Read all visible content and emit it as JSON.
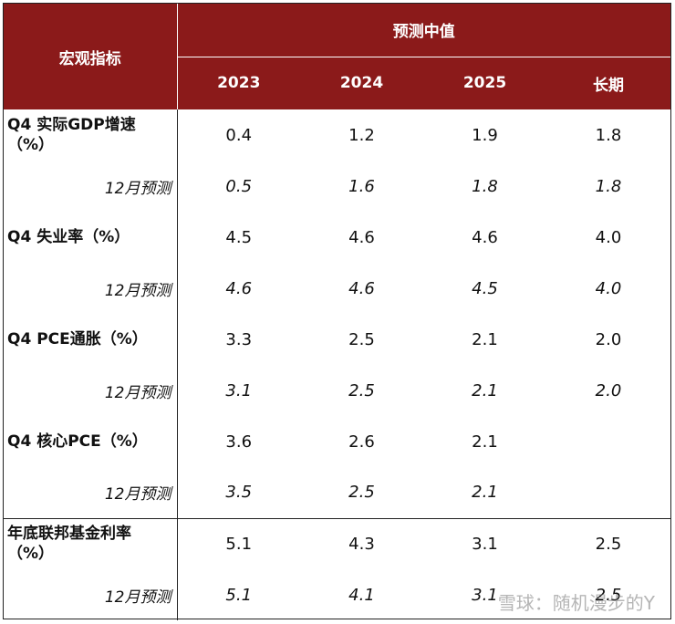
{
  "header": {
    "row_label": "宏观指标",
    "group_label": "预测中值",
    "years": [
      "2023",
      "2024",
      "2025",
      "长期"
    ]
  },
  "rows": [
    {
      "label_line1": "Q4 实际GDP增速",
      "label_line2": "（%）",
      "values": [
        "0.4",
        "1.2",
        "1.9",
        "1.8"
      ],
      "sub_label": "12月预测",
      "sub_values": [
        "0.5",
        "1.6",
        "1.8",
        "1.8"
      ]
    },
    {
      "label_line1": "Q4 失业率（%）",
      "label_line2": "",
      "values": [
        "4.5",
        "4.6",
        "4.6",
        "4.0"
      ],
      "sub_label": "12月预测",
      "sub_values": [
        "4.6",
        "4.6",
        "4.5",
        "4.0"
      ]
    },
    {
      "label_line1": "Q4 PCE通胀（%）",
      "label_line2": "",
      "values": [
        "3.3",
        "2.5",
        "2.1",
        "2.0"
      ],
      "sub_label": "12月预测",
      "sub_values": [
        "3.1",
        "2.5",
        "2.1",
        "2.0"
      ]
    },
    {
      "label_line1": "Q4 核心PCE（%）",
      "label_line2": "",
      "values": [
        "3.6",
        "2.6",
        "2.1",
        ""
      ],
      "sub_label": "12月预测",
      "sub_values": [
        "3.5",
        "2.5",
        "2.1",
        ""
      ]
    },
    {
      "label_line1": "年底联邦基金利率",
      "label_line2": "（%）",
      "values": [
        "5.1",
        "4.3",
        "3.1",
        "2.5"
      ],
      "sub_label": "12月预测",
      "sub_values": [
        "5.1",
        "4.1",
        "3.1",
        "2.5"
      ]
    }
  ],
  "watermark": "雪球：随机漫步的Y"
}
